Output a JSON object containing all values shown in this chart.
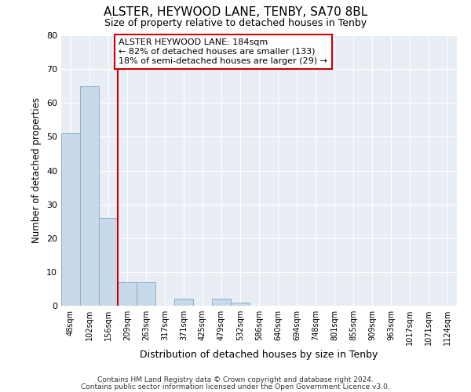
{
  "title": "ALSTER, HEYWOOD LANE, TENBY, SA70 8BL",
  "subtitle": "Size of property relative to detached houses in Tenby",
  "xlabel": "Distribution of detached houses by size in Tenby",
  "ylabel": "Number of detached properties",
  "bin_labels": [
    "48sqm",
    "102sqm",
    "156sqm",
    "209sqm",
    "263sqm",
    "317sqm",
    "371sqm",
    "425sqm",
    "479sqm",
    "532sqm",
    "586sqm",
    "640sqm",
    "694sqm",
    "748sqm",
    "801sqm",
    "855sqm",
    "909sqm",
    "963sqm",
    "1017sqm",
    "1071sqm",
    "1124sqm"
  ],
  "bar_heights": [
    51,
    65,
    26,
    7,
    7,
    0,
    2,
    0,
    2,
    1,
    0,
    0,
    0,
    0,
    0,
    0,
    0,
    0,
    0,
    0,
    0
  ],
  "bar_color": "#c8d9ea",
  "bar_edge_color": "#8ab0cc",
  "ylim": [
    0,
    80
  ],
  "yticks": [
    0,
    10,
    20,
    30,
    40,
    50,
    60,
    70,
    80
  ],
  "property_line_color": "#cc0000",
  "annotation_text": "ALSTER HEYWOOD LANE: 184sqm\n← 82% of detached houses are smaller (133)\n18% of semi-detached houses are larger (29) →",
  "annotation_box_color": "#ffffff",
  "annotation_box_edge": "#cc0000",
  "footer_line1": "Contains HM Land Registry data © Crown copyright and database right 2024.",
  "footer_line2": "Contains public sector information licensed under the Open Government Licence v3.0.",
  "background_color": "#ffffff",
  "plot_bg_color": "#e8eef4"
}
